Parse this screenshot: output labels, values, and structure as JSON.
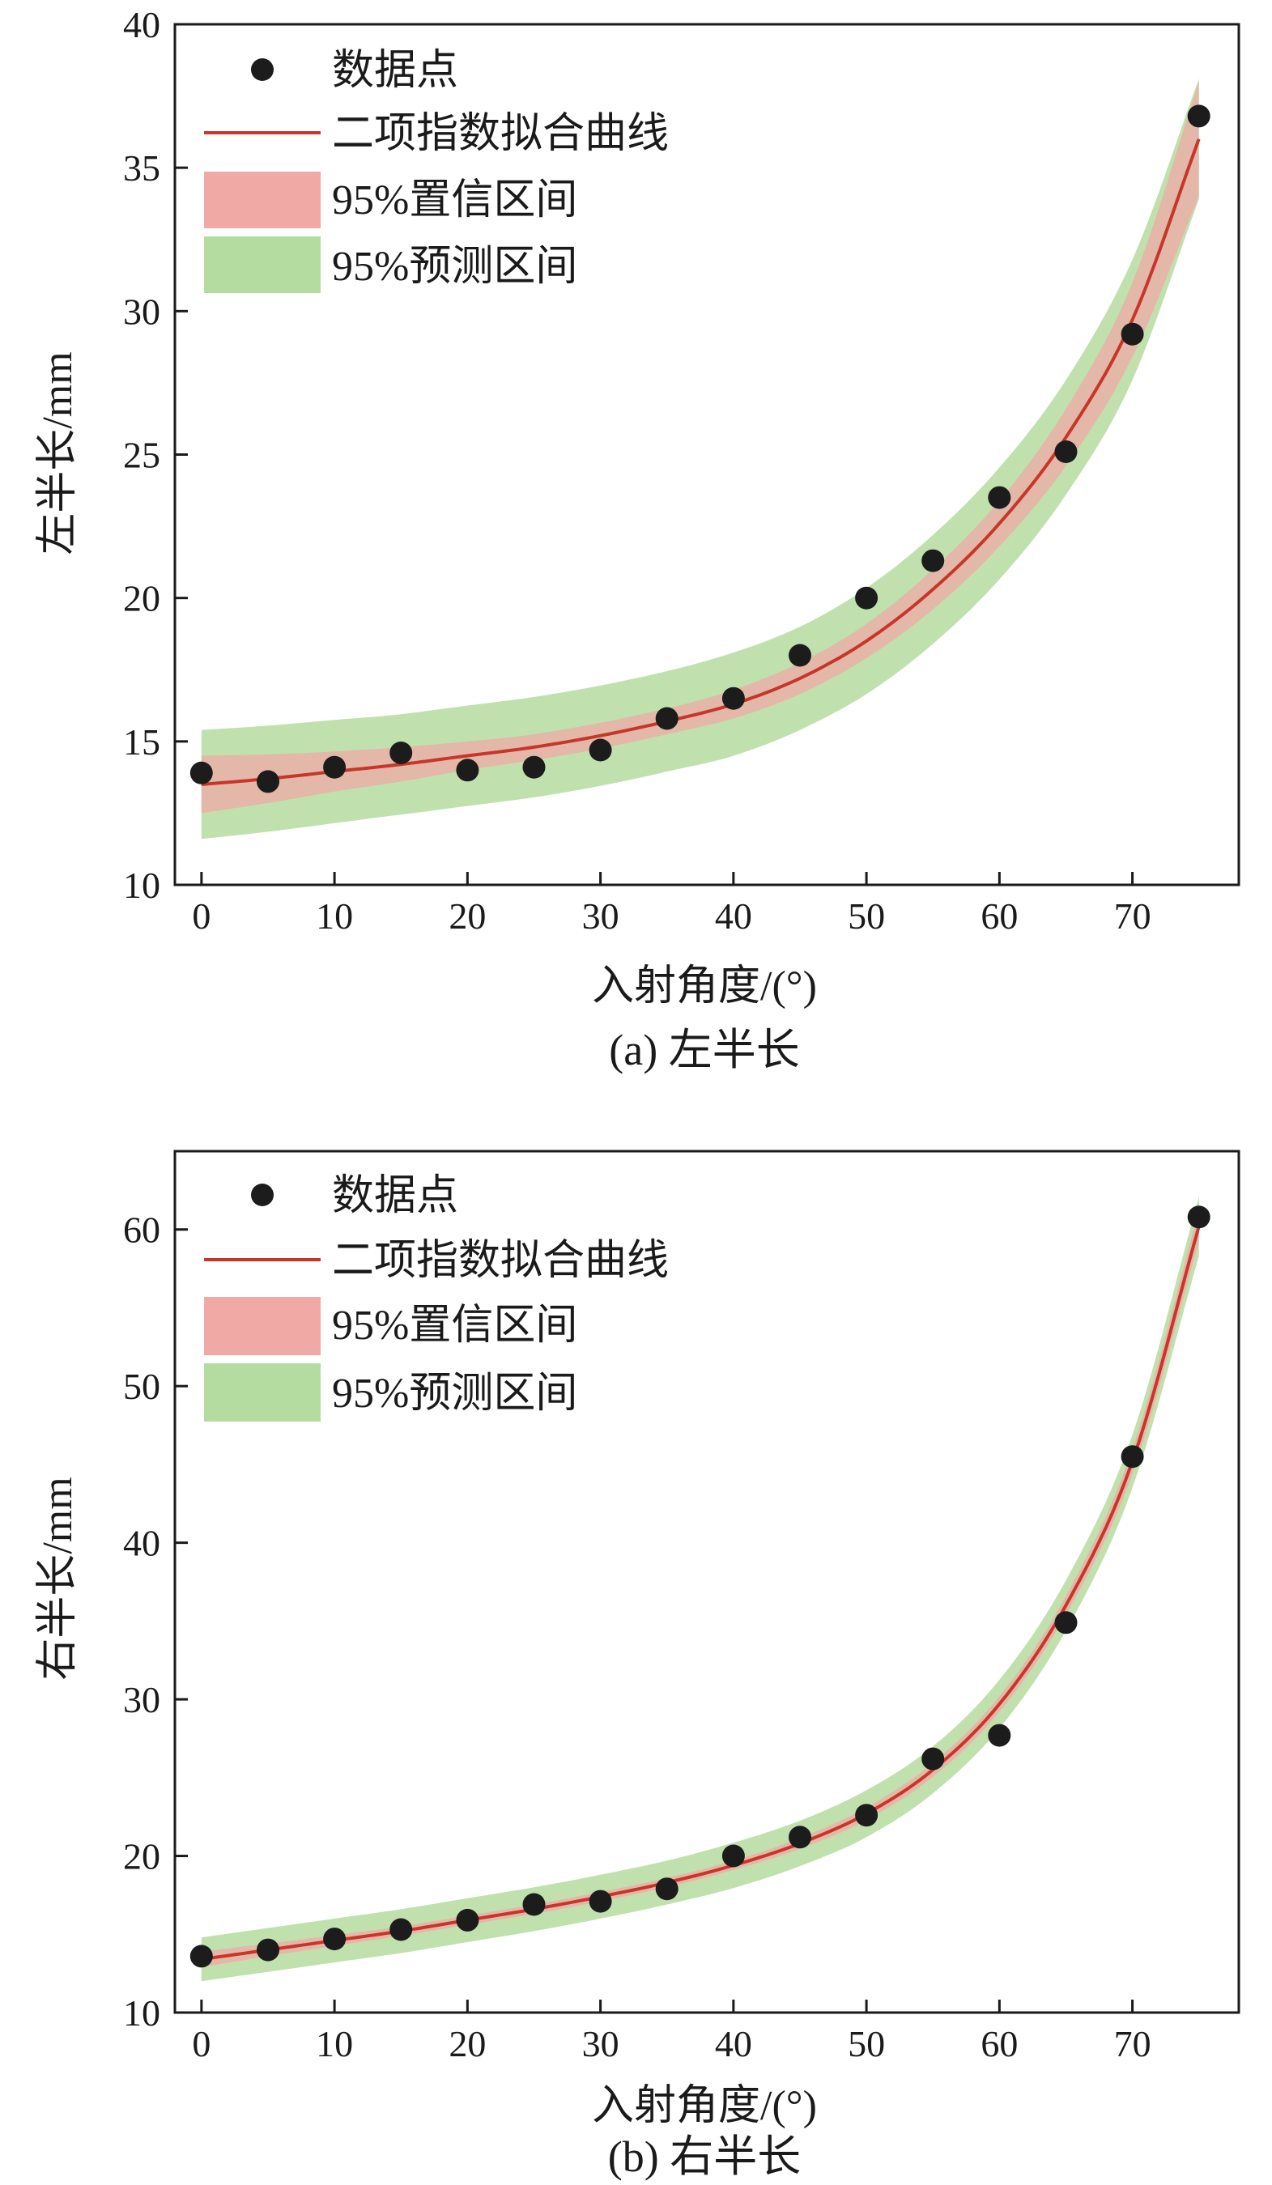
{
  "colors": {
    "points": "#1c1c1c",
    "fit": "#c8352b",
    "ci": "#f0a9a5",
    "pi": "#b5dca0",
    "axis": "#1a1a1a"
  },
  "chart_data": [
    {
      "type": "scatter",
      "subplot": "a",
      "caption": "(a) 左半长",
      "xlabel": "入射角度/(°)",
      "ylabel": "左半长/mm",
      "xlim": [
        -2,
        78
      ],
      "ylim": [
        10,
        40
      ],
      "xticks": [
        0,
        10,
        20,
        30,
        40,
        50,
        60,
        70
      ],
      "yticks": [
        10,
        15,
        20,
        25,
        30,
        35,
        40
      ],
      "legend": {
        "position": "top-left",
        "entries": [
          "数据点",
          "二项指数拟合曲线",
          "95%置信区间",
          "95%预测区间"
        ]
      },
      "points": {
        "x": [
          0,
          5,
          10,
          15,
          20,
          25,
          30,
          35,
          40,
          45,
          50,
          55,
          60,
          65,
          70,
          75
        ],
        "y": [
          13.9,
          13.6,
          14.1,
          14.6,
          14.0,
          14.1,
          14.7,
          15.8,
          16.5,
          18.0,
          20.0,
          21.3,
          23.5,
          25.1,
          29.2,
          36.8
        ]
      },
      "fit": {
        "x": [
          0,
          5,
          10,
          15,
          20,
          25,
          30,
          35,
          40,
          45,
          50,
          55,
          60,
          65,
          70,
          75
        ],
        "y": [
          13.5,
          13.7,
          13.95,
          14.2,
          14.5,
          14.8,
          15.2,
          15.7,
          16.3,
          17.2,
          18.5,
          20.3,
          22.6,
          25.6,
          29.7,
          36.0
        ]
      },
      "ci_halfwidth": [
        1.0,
        0.85,
        0.7,
        0.6,
        0.5,
        0.45,
        0.45,
        0.45,
        0.5,
        0.55,
        0.6,
        0.7,
        0.8,
        1.0,
        1.3,
        2.0
      ],
      "pi_halfwidth": [
        1.9,
        1.85,
        1.8,
        1.75,
        1.75,
        1.75,
        1.75,
        1.75,
        1.8,
        1.8,
        1.85,
        1.9,
        1.95,
        2.0,
        2.1,
        2.1
      ]
    },
    {
      "type": "scatter",
      "subplot": "b",
      "caption": "(b) 右半长",
      "xlabel": "入射角度/(°)",
      "ylabel": "右半长/mm",
      "xlim": [
        -2,
        78
      ],
      "ylim": [
        10,
        65
      ],
      "xticks": [
        0,
        10,
        20,
        30,
        40,
        50,
        60,
        70
      ],
      "yticks": [
        10,
        20,
        30,
        40,
        50,
        60
      ],
      "legend": {
        "position": "top-left",
        "entries": [
          "数据点",
          "二项指数拟合曲线",
          "95%置信区间",
          "95%预测区间"
        ]
      },
      "points": {
        "x": [
          0,
          5,
          10,
          15,
          20,
          25,
          30,
          35,
          40,
          45,
          50,
          55,
          60,
          65,
          70,
          75
        ],
        "y": [
          13.6,
          14.0,
          14.7,
          15.3,
          15.9,
          16.9,
          17.1,
          17.9,
          20.0,
          21.2,
          22.6,
          26.2,
          27.7,
          34.9,
          45.5,
          60.8
        ]
      },
      "fit": {
        "x": [
          0,
          5,
          10,
          15,
          20,
          25,
          30,
          35,
          40,
          45,
          50,
          55,
          60,
          65,
          70,
          75
        ],
        "y": [
          13.4,
          14.0,
          14.6,
          15.2,
          15.9,
          16.6,
          17.4,
          18.3,
          19.4,
          20.8,
          22.7,
          25.5,
          29.7,
          36.0,
          45.2,
          60.2
        ]
      },
      "ci_halfwidth": [
        0.5,
        0.4,
        0.35,
        0.3,
        0.3,
        0.3,
        0.3,
        0.3,
        0.3,
        0.35,
        0.4,
        0.45,
        0.5,
        0.6,
        0.8,
        1.0
      ],
      "pi_halfwidth": [
        1.4,
        1.4,
        1.4,
        1.4,
        1.4,
        1.4,
        1.4,
        1.4,
        1.45,
        1.45,
        1.5,
        1.5,
        1.55,
        1.6,
        1.7,
        1.9
      ]
    }
  ]
}
